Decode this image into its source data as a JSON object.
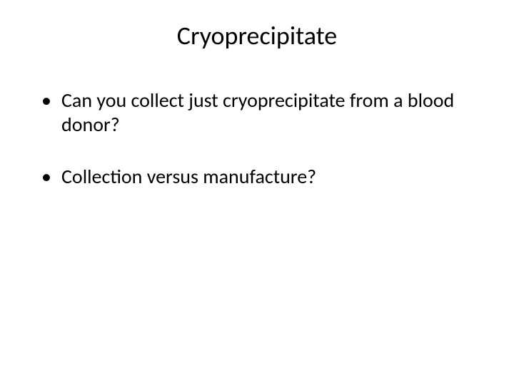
{
  "slide": {
    "title": "Cryoprecipitate",
    "bullets": [
      "Can you collect just cryoprecipitate from a blood donor?",
      "Collection versus manufacture?"
    ]
  },
  "styling": {
    "background_color": "#ffffff",
    "text_color": "#000000",
    "title_fontsize": 36,
    "body_fontsize": 28,
    "font_family": "Calibri"
  }
}
